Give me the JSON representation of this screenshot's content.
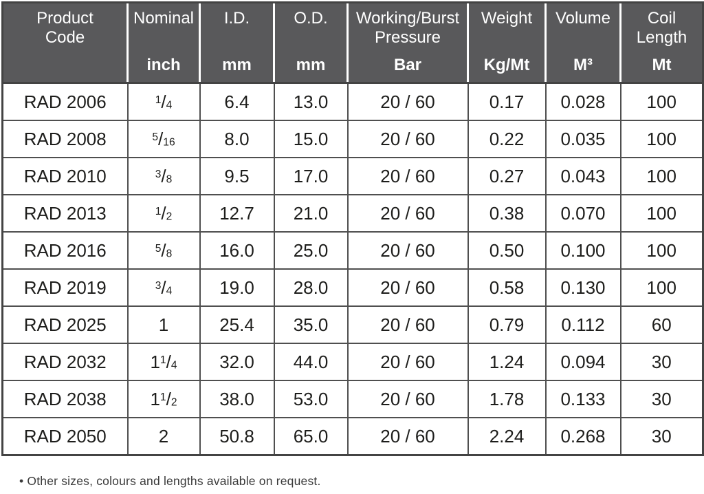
{
  "theme": {
    "header_bg": "#59595b",
    "header_text": "#ffffff",
    "header_separator": "#ffffff",
    "grid_border": "#4f4f4f",
    "outer_border": "#434343",
    "data_text": "#1d1d1b",
    "note_text": "#3a3a3a"
  },
  "table": {
    "columns": [
      {
        "label": "Product\nCode",
        "unit": ""
      },
      {
        "label": "Nominal",
        "unit": "inch"
      },
      {
        "label": "I.D.",
        "unit": "mm"
      },
      {
        "label": "O.D.",
        "unit": "mm"
      },
      {
        "label": "Working/Burst\nPressure",
        "unit": "Bar"
      },
      {
        "label": "Weight",
        "unit": "Kg/Mt"
      },
      {
        "label": "Volume",
        "unit": "M³"
      },
      {
        "label": "Coil\nLength",
        "unit": "Mt"
      }
    ],
    "rows": [
      {
        "code": "RAD 2006",
        "nominal": "1/4",
        "id": "6.4",
        "od": "13.0",
        "pressure": "20 / 60",
        "weight": "0.17",
        "volume": "0.028",
        "coil": "100"
      },
      {
        "code": "RAD 2008",
        "nominal": "5/16",
        "id": "8.0",
        "od": "15.0",
        "pressure": "20 / 60",
        "weight": "0.22",
        "volume": "0.035",
        "coil": "100"
      },
      {
        "code": "RAD 2010",
        "nominal": "3/8",
        "id": "9.5",
        "od": "17.0",
        "pressure": "20 / 60",
        "weight": "0.27",
        "volume": "0.043",
        "coil": "100"
      },
      {
        "code": "RAD 2013",
        "nominal": "1/2",
        "id": "12.7",
        "od": "21.0",
        "pressure": "20 / 60",
        "weight": "0.38",
        "volume": "0.070",
        "coil": "100"
      },
      {
        "code": "RAD 2016",
        "nominal": "5/8",
        "id": "16.0",
        "od": "25.0",
        "pressure": "20 / 60",
        "weight": "0.50",
        "volume": "0.100",
        "coil": "100"
      },
      {
        "code": "RAD 2019",
        "nominal": "3/4",
        "id": "19.0",
        "od": "28.0",
        "pressure": "20 / 60",
        "weight": "0.58",
        "volume": "0.130",
        "coil": "100"
      },
      {
        "code": "RAD 2025",
        "nominal": "1",
        "id": "25.4",
        "od": "35.0",
        "pressure": "20 / 60",
        "weight": "0.79",
        "volume": "0.112",
        "coil": "60"
      },
      {
        "code": "RAD 2032",
        "nominal": "1 1/4",
        "id": "32.0",
        "od": "44.0",
        "pressure": "20 / 60",
        "weight": "1.24",
        "volume": "0.094",
        "coil": "30"
      },
      {
        "code": "RAD 2038",
        "nominal": "1 1/2",
        "id": "38.0",
        "od": "53.0",
        "pressure": "20 / 60",
        "weight": "1.78",
        "volume": "0.133",
        "coil": "30"
      },
      {
        "code": "RAD 2050",
        "nominal": "2",
        "id": "50.8",
        "od": "65.0",
        "pressure": "20 / 60",
        "weight": "2.24",
        "volume": "0.268",
        "coil": "30"
      }
    ]
  },
  "footnote": "• Other sizes, colours and lengths available on request."
}
